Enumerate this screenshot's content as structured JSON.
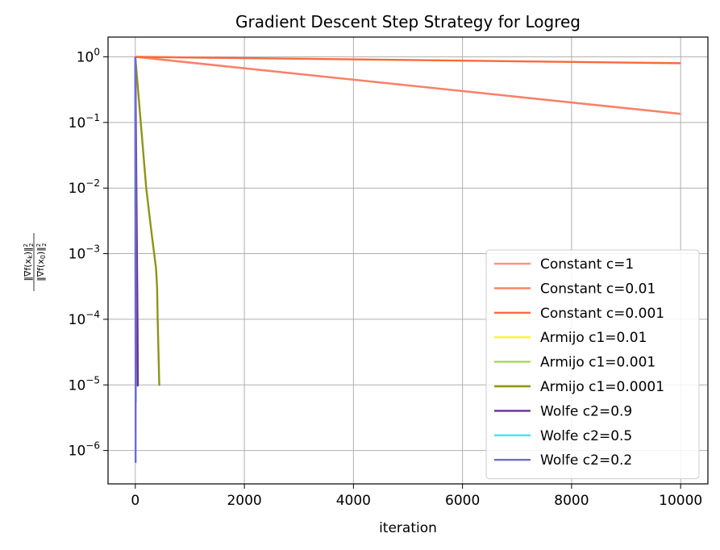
{
  "chart_data": {
    "type": "line",
    "title": "Gradient Descent Step Strategy for Logreg",
    "xlabel": "iteration",
    "ylabel": "‖∇f(x_k)‖₂² / ‖∇f(x₀)‖₂²",
    "ylabel_numerator": "‖∇f(x",
    "ylabel_numerator_sub": "k",
    "ylabel_numerator_end": ")‖",
    "ylabel_denominator": "‖∇f(x",
    "ylabel_denominator_sub": "0",
    "ylabel_denominator_end": ")‖",
    "ylabel_power": "2",
    "ylabel_norm_sub": "2",
    "yscale": "log",
    "xlim": [
      -500,
      10500
    ],
    "ylim": [
      3.1e-07,
      2.0
    ],
    "grid": true,
    "legend_position": "lower-right",
    "x_ticks": [
      {
        "value": 0,
        "label": "0"
      },
      {
        "value": 2000,
        "label": "2000"
      },
      {
        "value": 4000,
        "label": "4000"
      },
      {
        "value": 6000,
        "label": "6000"
      },
      {
        "value": 8000,
        "label": "8000"
      },
      {
        "value": 10000,
        "label": "10000"
      }
    ],
    "y_ticks": [
      {
        "value": 1,
        "base": "10",
        "exp": "0"
      },
      {
        "value": 0.1,
        "base": "10",
        "exp": "−1"
      },
      {
        "value": 0.01,
        "base": "10",
        "exp": "−2"
      },
      {
        "value": 0.001,
        "base": "10",
        "exp": "−3"
      },
      {
        "value": 0.0001,
        "base": "10",
        "exp": "−4"
      },
      {
        "value": 1e-05,
        "base": "10",
        "exp": "−5"
      },
      {
        "value": 1e-06,
        "base": "10",
        "exp": "−6"
      }
    ],
    "series": [
      {
        "name": "Constant c=1",
        "color": "#fa9483",
        "x": [
          0,
          10000
        ],
        "y": [
          1,
          0.135
        ]
      },
      {
        "name": "Constant c=0.01",
        "color": "#fa8069",
        "x": [
          0,
          10000
        ],
        "y": [
          1,
          0.135
        ]
      },
      {
        "name": "Constant c=0.001",
        "color": "#f96a3a",
        "x": [
          0,
          10000
        ],
        "y": [
          1,
          0.8
        ]
      },
      {
        "name": "Armijo c1=0.01",
        "color": "#f5f532",
        "x": [
          0,
          2,
          5
        ],
        "y": [
          1,
          0.001,
          1e-05
        ]
      },
      {
        "name": "Armijo c1=0.001",
        "color": "#a6d65a",
        "x": [
          0,
          20,
          50
        ],
        "y": [
          1,
          0.001,
          1e-05
        ]
      },
      {
        "name": "Armijo c1=0.0001",
        "color": "#8f9415",
        "x": [
          0,
          100,
          200,
          300,
          380,
          400,
          410,
          440
        ],
        "y": [
          1,
          0.1,
          0.01,
          0.002,
          0.0006,
          0.0003,
          0.0001,
          9.7e-06
        ]
      },
      {
        "name": "Wolfe c2=0.9",
        "color": "#6a2e94",
        "x": [
          0,
          20,
          40,
          45
        ],
        "y": [
          1,
          0.01,
          0.0001,
          9.5e-06
        ]
      },
      {
        "name": "Wolfe c2=0.5",
        "color": "#3ee7f2",
        "x": [
          0,
          5,
          10
        ],
        "y": [
          1,
          0.0001,
          5.5e-06
        ]
      },
      {
        "name": "Wolfe c2=0.2",
        "color": "#6e6ad6",
        "x": [
          0,
          3,
          6,
          5
        ],
        "y": [
          1,
          0.001,
          1e-05,
          6.5e-07
        ]
      }
    ]
  }
}
